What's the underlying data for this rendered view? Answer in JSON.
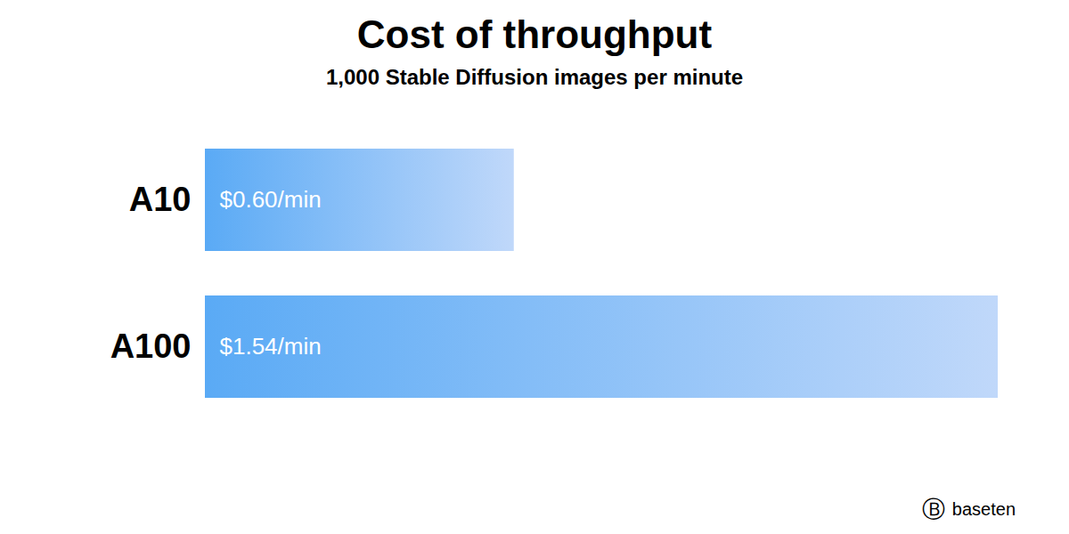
{
  "chart_data": {
    "type": "bar",
    "orientation": "horizontal",
    "title": "Cost of throughput",
    "subtitle": "1,000 Stable Diffusion images per minute",
    "categories": [
      "A10",
      "A100"
    ],
    "values": [
      0.6,
      1.54
    ],
    "value_labels": [
      "$0.60/min",
      "$1.54/min"
    ],
    "data_labels": true,
    "color": [
      "#5aaaf5",
      "#c0d8fa"
    ],
    "xlim": [
      0,
      1.54
    ],
    "tick_labels": "y",
    "grid": false,
    "annotations": [
      "Ⓑ",
      "baseten"
    ]
  }
}
